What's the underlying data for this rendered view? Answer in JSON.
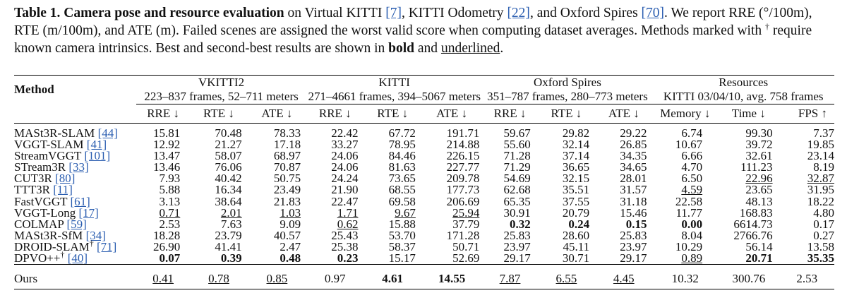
{
  "caption": {
    "label": "Table 1.",
    "title": "Camera pose and resource evaluation",
    "part1": "on Virtual KITTI ",
    "cite1": "[7]",
    "part2": ", KITTI Odometry ",
    "cite2": "[22]",
    "part3": ", and Oxford Spires ",
    "cite3": "[70]",
    "part4": ". We report RRE (°/100m), RTE (m/100m), and ATE (m). Failed scenes are assigned the worst valid score when computing dataset averages. Methods marked with ",
    "dagger": "†",
    "part5": " require known camera intrinsics. Best and second-best results are shown in ",
    "bold_word": "bold",
    "part6": " and ",
    "underlined_word": "underlined",
    "part7": "."
  },
  "header": {
    "method": "Method",
    "groups": [
      {
        "name": "VKITTI2",
        "desc": "223–837 frames, 52–711 meters"
      },
      {
        "name": "KITTI",
        "desc": "271–4661 frames, 394–5067 meters"
      },
      {
        "name": "Oxford Spires",
        "desc": "351–787 frames, 280–773 meters"
      },
      {
        "name": "Resources",
        "desc": "KITTI 03/04/10, avg. 758 frames"
      }
    ],
    "metrics": [
      "RRE ↓",
      "RTE ↓",
      "ATE ↓",
      "RRE ↓",
      "RTE ↓",
      "ATE ↓",
      "RRE ↓",
      "RTE ↓",
      "ATE ↓",
      "Memory ↓",
      "Time ↓",
      "FPS ↑"
    ]
  },
  "rows": [
    {
      "name": "MASt3R-SLAM ",
      "cite": "[44]",
      "dagger": "",
      "v": [
        "15.81",
        "70.48",
        "78.33",
        "22.42",
        "67.72",
        "191.71",
        "59.67",
        "29.82",
        "29.22",
        "6.74",
        "99.30",
        "7.37"
      ],
      "bold": [],
      "ul": []
    },
    {
      "name": "VGGT-SLAM ",
      "cite": "[41]",
      "dagger": "",
      "v": [
        "12.92",
        "21.27",
        "17.18",
        "33.27",
        "78.95",
        "214.88",
        "55.60",
        "32.14",
        "26.85",
        "10.67",
        "39.72",
        "19.85"
      ],
      "bold": [],
      "ul": []
    },
    {
      "name": "StreamVGGT ",
      "cite": "[101]",
      "dagger": "",
      "v": [
        "13.47",
        "58.07",
        "68.97",
        "24.06",
        "84.46",
        "226.15",
        "71.28",
        "37.14",
        "34.35",
        "6.66",
        "32.61",
        "23.14"
      ],
      "bold": [],
      "ul": []
    },
    {
      "name": "STream3R ",
      "cite": "[33]",
      "dagger": "",
      "v": [
        "13.46",
        "76.06",
        "70.87",
        "24.06",
        "81.63",
        "227.77",
        "71.29",
        "36.65",
        "34.65",
        "4.70",
        "111.23",
        "8.19"
      ],
      "bold": [],
      "ul": []
    },
    {
      "name": "CUT3R ",
      "cite": "[80]",
      "dagger": "",
      "v": [
        "7.93",
        "40.42",
        "50.75",
        "24.24",
        "73.65",
        "209.78",
        "54.69",
        "32.15",
        "28.01",
        "6.50",
        "22.96",
        "32.87"
      ],
      "bold": [],
      "ul": [
        10,
        11
      ]
    },
    {
      "name": "TTT3R ",
      "cite": "[11]",
      "dagger": "",
      "v": [
        "5.88",
        "16.34",
        "23.49",
        "21.90",
        "68.55",
        "177.73",
        "62.68",
        "35.51",
        "31.57",
        "4.59",
        "23.65",
        "31.95"
      ],
      "bold": [],
      "ul": [
        9
      ]
    },
    {
      "name": "FastVGGT ",
      "cite": "[61]",
      "dagger": "",
      "v": [
        "3.13",
        "38.64",
        "21.83",
        "22.47",
        "69.58",
        "206.69",
        "65.35",
        "37.55",
        "31.18",
        "22.58",
        "48.13",
        "18.22"
      ],
      "bold": [],
      "ul": []
    },
    {
      "name": "VGGT-Long ",
      "cite": "[17]",
      "dagger": "",
      "v": [
        "0.71",
        "2.01",
        "1.03",
        "1.71",
        "9.67",
        "25.94",
        "30.91",
        "20.79",
        "15.46",
        "11.77",
        "168.83",
        "4.80"
      ],
      "bold": [],
      "ul": [
        0,
        1,
        2,
        3,
        4,
        5
      ]
    },
    {
      "name": "COLMAP ",
      "cite": "[59]",
      "dagger": "",
      "v": [
        "2.53",
        "7.63",
        "9.09",
        "0.62",
        "15.88",
        "37.79",
        "0.32",
        "0.24",
        "0.15",
        "0.00",
        "6614.73",
        "0.17"
      ],
      "bold": [
        6,
        7,
        8,
        9
      ],
      "ul": [
        3
      ]
    },
    {
      "name": "MASt3R-SfM ",
      "cite": "[34]",
      "dagger": "",
      "v": [
        "18.28",
        "23.79",
        "40.57",
        "25.43",
        "53.70",
        "171.28",
        "25.83",
        "28.60",
        "25.83",
        "8.04",
        "2766.76",
        "0.27"
      ],
      "bold": [],
      "ul": []
    },
    {
      "name": "DROID-SLAM",
      "cite": "[71]",
      "dagger": "†",
      "v": [
        "26.90",
        "41.41",
        "2.47",
        "25.38",
        "58.37",
        "50.71",
        "23.97",
        "45.11",
        "23.97",
        "10.29",
        "56.14",
        "13.58"
      ],
      "bold": [],
      "ul": []
    },
    {
      "name": "DPVO++",
      "cite": "[40]",
      "dagger": "†",
      "v": [
        "0.07",
        "0.39",
        "0.48",
        "0.23",
        "15.17",
        "52.69",
        "29.17",
        "30.71",
        "29.17",
        "0.89",
        "20.71",
        "35.35"
      ],
      "bold": [
        0,
        1,
        2,
        3,
        10,
        11
      ],
      "ul": [
        9
      ]
    }
  ],
  "ours": {
    "name": "Ours",
    "v": [
      "0.41",
      "0.78",
      "0.85",
      "0.97",
      "4.61",
      "14.55",
      "7.87",
      "6.55",
      "4.45",
      "10.32",
      "300.76",
      "2.53"
    ],
    "bold": [
      4,
      5
    ],
    "ul": [
      0,
      1,
      2,
      6,
      7,
      8
    ]
  }
}
